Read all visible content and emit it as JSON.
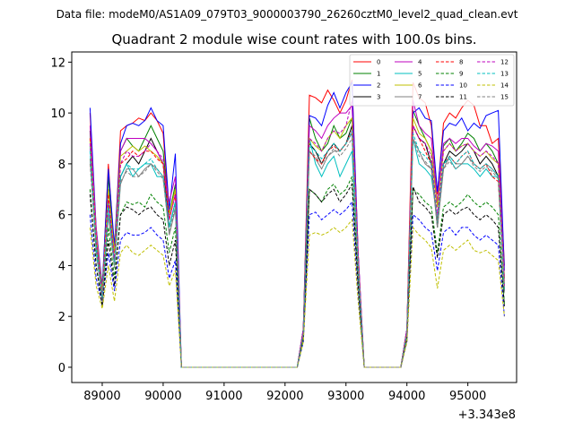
{
  "header": {
    "data_file": "Data file: modeM0/AS1A09_079T03_9000003790_26260cztM0_level2_quad_clean.evt"
  },
  "chart_data": {
    "type": "line",
    "title": "Quadrant 2 module wise count rates with 100.0s bins.",
    "xlabel": "",
    "ylabel": "",
    "offset_text": "+3.343e8",
    "xlim": [
      88500,
      95800
    ],
    "ylim": [
      -0.6,
      12.4
    ],
    "xticks": [
      89000,
      90000,
      91000,
      92000,
      93000,
      94000,
      95000
    ],
    "xtick_labels": [
      "89000",
      "90000",
      "91000",
      "92000",
      "93000",
      "94000",
      "95000"
    ],
    "yticks": [
      0,
      2,
      4,
      6,
      8,
      10,
      12
    ],
    "ytick_labels": [
      "0",
      "2",
      "4",
      "6",
      "8",
      "10",
      "12"
    ],
    "grid": false,
    "legend": {
      "placement": "top-right",
      "columns": 4
    },
    "x": [
      88800,
      88900,
      89000,
      89100,
      89200,
      89300,
      89400,
      89500,
      89600,
      89700,
      89800,
      89900,
      90000,
      90100,
      90200,
      90300,
      92200,
      92300,
      92400,
      92500,
      92600,
      92700,
      92800,
      92900,
      93000,
      93100,
      93200,
      93300,
      93900,
      94000,
      94100,
      94200,
      94300,
      94400,
      94500,
      94600,
      94700,
      94800,
      94900,
      95000,
      95100,
      95200,
      95300,
      95400,
      95500,
      95600
    ],
    "series": [
      {
        "name": "0",
        "color": "#ff0000",
        "dash": "solid",
        "values": [
          10.0,
          5.0,
          3.0,
          8.0,
          4.5,
          9.3,
          9.5,
          9.6,
          9.8,
          9.7,
          10.0,
          9.7,
          9.2,
          6.0,
          7.0,
          0,
          0,
          1.5,
          10.7,
          10.6,
          10.4,
          10.9,
          10.5,
          10.0,
          10.5,
          11.3,
          4.5,
          0,
          0,
          1.5,
          11.2,
          10.6,
          10.4,
          9.5,
          6.8,
          9.6,
          10.0,
          9.8,
          10.2,
          10.5,
          10.3,
          9.5,
          9.5,
          8.8,
          9.0,
          4.0
        ]
      },
      {
        "name": "1",
        "color": "#008000",
        "dash": "solid",
        "values": [
          9.0,
          5.0,
          3.0,
          7.5,
          4.5,
          8.5,
          9.0,
          8.7,
          8.5,
          9.0,
          9.5,
          9.0,
          8.5,
          6.0,
          7.2,
          0,
          0,
          1.5,
          9.8,
          9.0,
          8.5,
          8.8,
          9.5,
          9.0,
          9.2,
          9.8,
          4.0,
          0,
          0,
          1.5,
          10.1,
          9.5,
          9.0,
          8.5,
          6.3,
          8.7,
          9.0,
          8.5,
          8.8,
          9.2,
          9.0,
          8.5,
          8.8,
          8.5,
          8.0,
          3.5
        ]
      },
      {
        "name": "2",
        "color": "#0000ff",
        "dash": "solid",
        "values": [
          10.2,
          5.5,
          3.2,
          7.8,
          4.8,
          8.8,
          9.5,
          9.6,
          9.5,
          9.7,
          10.2,
          9.7,
          9.5,
          6.2,
          8.4,
          0,
          0,
          1.5,
          9.9,
          9.8,
          9.5,
          10.3,
          10.8,
          10.2,
          10.8,
          11.2,
          4.5,
          0,
          0,
          1.5,
          10.0,
          10.2,
          9.8,
          9.7,
          6.9,
          9.3,
          9.6,
          9.5,
          9.8,
          9.3,
          9.6,
          9.4,
          9.9,
          10.0,
          10.1,
          3.8
        ]
      },
      {
        "name": "3",
        "color": "#000000",
        "dash": "solid",
        "values": [
          9.3,
          5.0,
          2.8,
          6.5,
          4.0,
          7.5,
          8.0,
          8.3,
          8.0,
          8.5,
          9.0,
          8.5,
          8.0,
          5.5,
          6.5,
          0,
          0,
          1.3,
          8.8,
          8.5,
          8.0,
          8.5,
          8.8,
          8.5,
          8.8,
          9.5,
          4.0,
          0,
          0,
          1.3,
          9.5,
          9.0,
          8.8,
          8.0,
          5.5,
          8.0,
          8.5,
          8.3,
          8.5,
          8.8,
          8.5,
          8.0,
          8.3,
          8.0,
          7.5,
          3.0
        ]
      },
      {
        "name": "4",
        "color": "#bf00bf",
        "dash": "solid",
        "values": [
          9.5,
          5.5,
          3.0,
          7.0,
          4.5,
          8.5,
          9.0,
          9.0,
          9.0,
          9.0,
          8.8,
          8.5,
          8.0,
          6.5,
          7.5,
          0,
          0,
          1.5,
          9.5,
          9.3,
          9.0,
          9.5,
          9.8,
          10.0,
          10.0,
          10.3,
          4.5,
          0,
          0,
          1.5,
          10.5,
          9.5,
          9.2,
          9.0,
          6.5,
          8.8,
          9.0,
          8.8,
          9.0,
          9.0,
          8.7,
          8.5,
          8.8,
          8.7,
          8.5,
          3.5
        ]
      },
      {
        "name": "5",
        "color": "#00bfbf",
        "dash": "solid",
        "values": [
          8.7,
          4.5,
          2.8,
          6.5,
          4.0,
          7.5,
          8.0,
          7.5,
          7.8,
          8.0,
          8.0,
          7.5,
          7.5,
          5.5,
          6.5,
          0,
          0,
          1.3,
          9.0,
          8.0,
          7.5,
          8.0,
          8.3,
          7.5,
          8.0,
          8.5,
          3.8,
          0,
          0,
          1.3,
          9.0,
          8.0,
          7.8,
          7.5,
          5.8,
          8.0,
          8.2,
          7.8,
          8.0,
          8.0,
          7.8,
          7.5,
          7.8,
          7.5,
          7.5,
          3.0
        ]
      },
      {
        "name": "6",
        "color": "#bfbf00",
        "dash": "solid",
        "values": [
          9.0,
          5.2,
          3.0,
          7.0,
          4.5,
          8.3,
          8.5,
          8.7,
          8.5,
          8.7,
          8.5,
          8.3,
          8.0,
          6.0,
          7.0,
          0,
          0,
          1.4,
          9.0,
          8.7,
          8.5,
          9.0,
          9.3,
          9.0,
          9.5,
          9.8,
          4.2,
          0,
          0,
          1.4,
          9.8,
          9.2,
          9.0,
          8.5,
          6.3,
          8.5,
          8.8,
          8.5,
          8.7,
          8.8,
          8.5,
          8.3,
          8.5,
          8.2,
          8.0,
          3.3
        ]
      },
      {
        "name": "7",
        "color": "#808080",
        "dash": "solid",
        "values": [
          8.2,
          4.8,
          2.5,
          6.0,
          4.0,
          7.2,
          7.8,
          7.8,
          7.5,
          7.8,
          8.0,
          7.8,
          7.5,
          5.2,
          6.2,
          0,
          0,
          1.3,
          8.5,
          8.2,
          7.8,
          8.3,
          8.5,
          8.5,
          8.8,
          9.2,
          3.8,
          0,
          0,
          1.3,
          9.0,
          8.5,
          8.0,
          7.8,
          5.5,
          7.8,
          8.3,
          8.0,
          8.0,
          8.3,
          8.0,
          7.8,
          8.0,
          7.8,
          7.5,
          3.0
        ]
      },
      {
        "name": "8",
        "color": "#ff0000",
        "dash": "dashed",
        "values": [
          9.0,
          5.0,
          2.8,
          6.8,
          4.2,
          8.0,
          8.2,
          8.5,
          8.3,
          8.5,
          8.5,
          8.2,
          8.0,
          5.8,
          6.8,
          0,
          0,
          1.4,
          8.5,
          8.2,
          8.0,
          8.5,
          8.7,
          8.5,
          8.8,
          9.3,
          4.0,
          0,
          0,
          1.4,
          9.5,
          9.0,
          8.5,
          8.0,
          5.8,
          8.0,
          8.3,
          8.0,
          8.3,
          8.5,
          8.0,
          7.8,
          8.0,
          7.5,
          7.3,
          3.2
        ]
      },
      {
        "name": "9",
        "color": "#008000",
        "dash": "dashed",
        "values": [
          7.0,
          4.0,
          2.5,
          5.5,
          3.5,
          6.0,
          6.5,
          6.4,
          6.5,
          6.3,
          6.8,
          6.5,
          6.3,
          4.5,
          5.5,
          0,
          0,
          1.2,
          7.0,
          6.8,
          6.5,
          7.0,
          7.2,
          6.8,
          7.0,
          7.5,
          3.5,
          0,
          0,
          1.2,
          7.0,
          6.8,
          6.5,
          6.3,
          4.5,
          6.3,
          6.5,
          6.3,
          6.5,
          6.8,
          6.5,
          6.3,
          6.5,
          6.3,
          6.0,
          2.5
        ]
      },
      {
        "name": "10",
        "color": "#0000ff",
        "dash": "dashed",
        "values": [
          6.0,
          3.5,
          2.5,
          4.5,
          3.0,
          5.0,
          5.3,
          5.2,
          5.2,
          5.3,
          5.5,
          5.2,
          5.0,
          3.5,
          4.2,
          0,
          0,
          1.0,
          6.0,
          6.1,
          5.8,
          6.0,
          6.2,
          6.0,
          6.2,
          6.5,
          2.8,
          0,
          0,
          1.0,
          6.0,
          5.8,
          5.5,
          5.3,
          3.8,
          5.3,
          5.5,
          5.2,
          5.5,
          5.5,
          5.2,
          5.0,
          5.2,
          5.0,
          4.8,
          2.0
        ]
      },
      {
        "name": "11",
        "color": "#000000",
        "dash": "dashed",
        "values": [
          6.8,
          4.0,
          2.4,
          5.0,
          3.2,
          6.0,
          6.3,
          6.2,
          6.0,
          6.2,
          6.3,
          6.0,
          5.8,
          4.0,
          5.0,
          0,
          0,
          1.1,
          7.0,
          6.8,
          6.5,
          6.8,
          7.0,
          6.5,
          6.8,
          7.2,
          3.2,
          0,
          0,
          1.1,
          7.1,
          6.5,
          6.3,
          6.0,
          4.3,
          6.0,
          6.2,
          6.0,
          6.2,
          6.3,
          6.0,
          5.8,
          6.0,
          5.8,
          5.5,
          2.4
        ]
      },
      {
        "name": "12",
        "color": "#bf00bf",
        "dash": "dashed",
        "values": [
          8.8,
          5.0,
          2.8,
          6.5,
          4.2,
          8.0,
          8.5,
          8.3,
          8.3,
          8.5,
          8.8,
          8.5,
          8.2,
          5.8,
          6.8,
          0,
          0,
          1.4,
          9.0,
          8.8,
          8.5,
          9.0,
          9.3,
          9.2,
          9.5,
          10.5,
          4.2,
          0,
          0,
          1.4,
          9.5,
          9.0,
          8.8,
          8.3,
          6.0,
          8.5,
          8.8,
          8.5,
          8.7,
          8.8,
          8.5,
          8.3,
          8.5,
          8.3,
          8.0,
          3.2
        ]
      },
      {
        "name": "13",
        "color": "#00bfbf",
        "dash": "dashed",
        "values": [
          8.5,
          4.8,
          2.7,
          6.3,
          4.0,
          7.5,
          8.0,
          7.8,
          7.8,
          8.0,
          8.2,
          7.8,
          7.5,
          5.5,
          6.5,
          0,
          0,
          1.3,
          8.7,
          8.5,
          8.2,
          8.5,
          8.8,
          8.5,
          8.8,
          9.3,
          4.0,
          0,
          0,
          1.3,
          9.2,
          8.5,
          8.3,
          8.0,
          5.7,
          8.0,
          8.3,
          8.0,
          8.3,
          8.5,
          8.0,
          7.8,
          8.0,
          7.8,
          7.5,
          3.0
        ]
      },
      {
        "name": "14",
        "color": "#bfbf00",
        "dash": "dashed",
        "values": [
          5.5,
          3.2,
          2.3,
          4.0,
          2.6,
          4.5,
          4.8,
          4.5,
          4.4,
          4.6,
          4.8,
          4.6,
          4.4,
          3.2,
          3.8,
          0,
          0,
          1.0,
          5.2,
          5.3,
          5.2,
          5.3,
          5.5,
          5.3,
          5.5,
          5.8,
          2.6,
          0,
          0,
          1.0,
          5.5,
          5.2,
          5.0,
          4.7,
          3.1,
          4.6,
          4.8,
          4.6,
          4.8,
          5.0,
          4.6,
          4.5,
          4.6,
          4.4,
          4.2,
          2.0
        ]
      },
      {
        "name": "15",
        "color": "#808080",
        "dash": "dashed",
        "values": [
          8.0,
          4.6,
          2.6,
          6.0,
          3.9,
          7.3,
          7.7,
          7.5,
          7.5,
          7.7,
          8.0,
          7.7,
          7.4,
          5.3,
          6.3,
          0,
          0,
          1.3,
          8.5,
          8.3,
          8.0,
          8.3,
          8.6,
          8.3,
          8.6,
          9.0,
          3.8,
          0,
          0,
          1.3,
          9.0,
          8.3,
          8.1,
          7.8,
          5.6,
          7.8,
          8.1,
          7.8,
          8.0,
          8.3,
          7.9,
          7.7,
          7.9,
          7.7,
          7.4,
          2.9
        ]
      }
    ]
  }
}
